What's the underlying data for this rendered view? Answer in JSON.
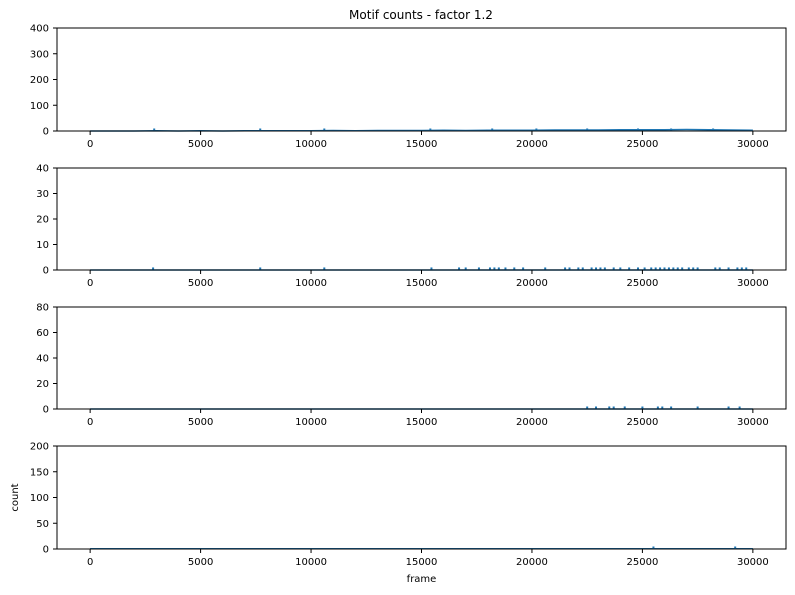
{
  "title": "Motif counts - factor 1.2",
  "colors": {
    "series": "#1f77b4",
    "axes": "#000000",
    "background": "#ffffff"
  },
  "chart_data": [
    {
      "type": "line",
      "title": "Motif counts - factor 1.2",
      "xlabel": "",
      "ylabel": "",
      "xlim": [
        -1500,
        31500
      ],
      "ylim": [
        0,
        400
      ],
      "xticks": [
        0,
        5000,
        10000,
        15000,
        20000,
        25000,
        30000
      ],
      "yticks": [
        0,
        100,
        200,
        300,
        400
      ],
      "grid": false,
      "series": [
        {
          "x": [
            0,
            1000,
            2000,
            3000,
            4000,
            5000,
            6000,
            7000,
            8000,
            9000,
            10000,
            11000,
            12000,
            13000,
            14000,
            15000,
            16000,
            17000,
            18000,
            19000,
            20000,
            21000,
            22000,
            23000,
            24000,
            25000,
            26000,
            27000,
            28000,
            29000,
            30000
          ],
          "values": [
            0,
            0,
            0,
            1,
            0,
            1,
            0,
            1,
            1,
            1,
            1,
            2,
            1,
            2,
            2,
            2,
            3,
            2,
            3,
            3,
            3,
            4,
            4,
            4,
            5,
            5,
            5,
            6,
            5,
            4,
            3
          ]
        }
      ],
      "spikes": [
        {
          "x": 2900,
          "y": 2
        },
        {
          "x": 7700,
          "y": 2
        },
        {
          "x": 10600,
          "y": 2
        },
        {
          "x": 15400,
          "y": 3
        },
        {
          "x": 18200,
          "y": 3
        },
        {
          "x": 20200,
          "y": 4
        },
        {
          "x": 22500,
          "y": 4
        },
        {
          "x": 24800,
          "y": 5
        },
        {
          "x": 26300,
          "y": 5
        },
        {
          "x": 28200,
          "y": 6
        }
      ]
    },
    {
      "type": "line",
      "xlabel": "",
      "ylabel": "",
      "xlim": [
        -1500,
        31500
      ],
      "ylim": [
        0,
        40
      ],
      "xticks": [
        0,
        5000,
        10000,
        15000,
        20000,
        25000,
        30000
      ],
      "yticks": [
        0,
        10,
        20,
        30,
        40
      ],
      "grid": false,
      "series": [
        {
          "x": [
            0,
            30000
          ],
          "values": [
            0,
            0
          ]
        }
      ],
      "spikes": [
        {
          "x": 2850,
          "y": 1
        },
        {
          "x": 7700,
          "y": 1
        },
        {
          "x": 10600,
          "y": 1
        },
        {
          "x": 15450,
          "y": 1
        },
        {
          "x": 16700,
          "y": 1
        },
        {
          "x": 17000,
          "y": 1
        },
        {
          "x": 17600,
          "y": 1
        },
        {
          "x": 18100,
          "y": 1
        },
        {
          "x": 18300,
          "y": 1
        },
        {
          "x": 18500,
          "y": 1
        },
        {
          "x": 18800,
          "y": 1
        },
        {
          "x": 19200,
          "y": 1
        },
        {
          "x": 19600,
          "y": 1
        },
        {
          "x": 20600,
          "y": 1
        },
        {
          "x": 21500,
          "y": 1
        },
        {
          "x": 21700,
          "y": 1
        },
        {
          "x": 22100,
          "y": 1
        },
        {
          "x": 22300,
          "y": 1
        },
        {
          "x": 22700,
          "y": 1
        },
        {
          "x": 22900,
          "y": 1
        },
        {
          "x": 23100,
          "y": 1
        },
        {
          "x": 23300,
          "y": 1
        },
        {
          "x": 23700,
          "y": 1
        },
        {
          "x": 24000,
          "y": 1
        },
        {
          "x": 24400,
          "y": 1
        },
        {
          "x": 24800,
          "y": 1
        },
        {
          "x": 25100,
          "y": 1
        },
        {
          "x": 25400,
          "y": 1
        },
        {
          "x": 25600,
          "y": 1
        },
        {
          "x": 25800,
          "y": 1
        },
        {
          "x": 26000,
          "y": 1
        },
        {
          "x": 26200,
          "y": 1
        },
        {
          "x": 26400,
          "y": 1
        },
        {
          "x": 26600,
          "y": 1
        },
        {
          "x": 26800,
          "y": 1
        },
        {
          "x": 27100,
          "y": 1
        },
        {
          "x": 27300,
          "y": 1
        },
        {
          "x": 27500,
          "y": 1
        },
        {
          "x": 28300,
          "y": 1
        },
        {
          "x": 28500,
          "y": 1
        },
        {
          "x": 28900,
          "y": 1
        },
        {
          "x": 29300,
          "y": 1
        },
        {
          "x": 29500,
          "y": 1
        },
        {
          "x": 29700,
          "y": 1
        }
      ]
    },
    {
      "type": "line",
      "xlabel": "",
      "ylabel": "",
      "xlim": [
        -1500,
        31500
      ],
      "ylim": [
        0,
        80
      ],
      "xticks": [
        0,
        5000,
        10000,
        15000,
        20000,
        25000,
        30000
      ],
      "yticks": [
        0,
        20,
        40,
        60,
        80
      ],
      "grid": false,
      "series": [
        {
          "x": [
            0,
            30000
          ],
          "values": [
            0,
            0
          ]
        }
      ],
      "spikes": [
        {
          "x": 22500,
          "y": 1
        },
        {
          "x": 22900,
          "y": 1
        },
        {
          "x": 23500,
          "y": 2
        },
        {
          "x": 23700,
          "y": 1
        },
        {
          "x": 24200,
          "y": 2
        },
        {
          "x": 25000,
          "y": 1
        },
        {
          "x": 25700,
          "y": 1
        },
        {
          "x": 25900,
          "y": 1
        },
        {
          "x": 26300,
          "y": 1
        },
        {
          "x": 27500,
          "y": 1
        },
        {
          "x": 28900,
          "y": 1
        },
        {
          "x": 29400,
          "y": 1
        }
      ]
    },
    {
      "type": "line",
      "xlabel": "frame",
      "ylabel": "count",
      "xlim": [
        -1500,
        31500
      ],
      "ylim": [
        0,
        200
      ],
      "xticks": [
        0,
        5000,
        10000,
        15000,
        20000,
        25000,
        30000
      ],
      "yticks": [
        0,
        50,
        100,
        150,
        200
      ],
      "grid": false,
      "series": [
        {
          "x": [
            0,
            5000,
            10000,
            15000,
            20000,
            25000,
            30000
          ],
          "values": [
            0.5,
            0.5,
            0.5,
            0.5,
            0.5,
            0.5,
            0.5
          ]
        }
      ],
      "spikes": [
        {
          "x": 25500,
          "y": 2
        },
        {
          "x": 29200,
          "y": 2
        }
      ]
    }
  ]
}
